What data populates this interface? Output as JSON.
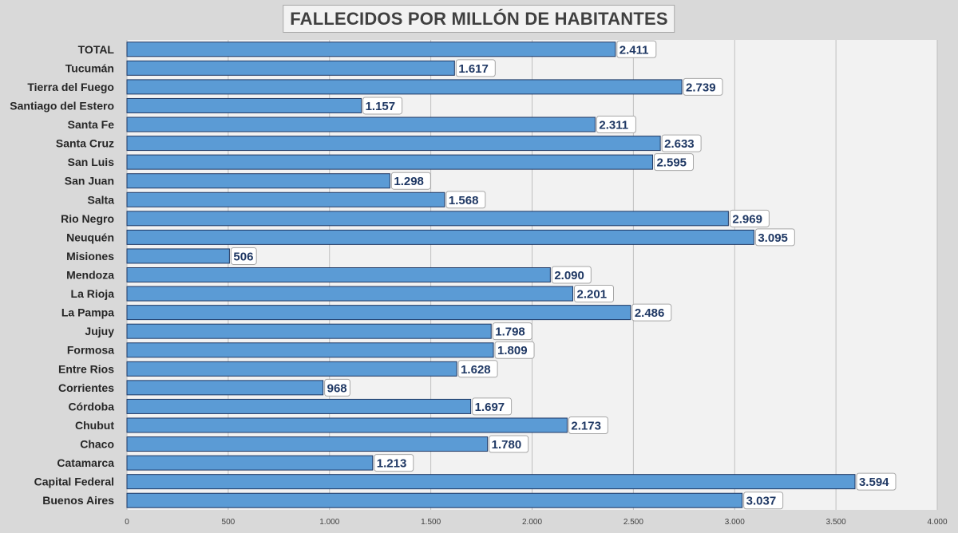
{
  "chart_data": {
    "type": "bar",
    "orientation": "horizontal",
    "title": "FALLECIDOS POR MILLÓN DE HABITANTES",
    "categories": [
      "TOTAL",
      "Tucumán",
      "Tierra del Fuego",
      "Santiago del Estero",
      "Santa Fe",
      "Santa Cruz",
      "San Luis",
      "San Juan",
      "Salta",
      "Rio Negro",
      "Neuquén",
      "Misiones",
      "Mendoza",
      "La Rioja",
      "La Pampa",
      "Jujuy",
      "Formosa",
      "Entre Rios",
      "Corrientes",
      "Córdoba",
      "Chubut",
      "Chaco",
      "Catamarca",
      "Capital Federal",
      "Buenos Aires"
    ],
    "values": [
      2411,
      1617,
      2739,
      1157,
      2311,
      2633,
      2595,
      1298,
      1568,
      2969,
      3095,
      506,
      2090,
      2201,
      2486,
      1798,
      1809,
      1628,
      968,
      1697,
      2173,
      1780,
      1213,
      3594,
      3037
    ],
    "value_labels": [
      "2.411",
      "1.617",
      "2.739",
      "1.157",
      "2.311",
      "2.633",
      "2.595",
      "1.298",
      "1.568",
      "2.969",
      "3.095",
      "506",
      "2.090",
      "2.201",
      "2.486",
      "1.798",
      "1.809",
      "1.628",
      "968",
      "1.697",
      "2.173",
      "1.780",
      "1.213",
      "3.594",
      "3.037"
    ],
    "xlim": [
      0,
      4000
    ],
    "xticks": [
      0,
      500,
      1000,
      1500,
      2000,
      2500,
      3000,
      3500,
      4000
    ],
    "xtick_labels": [
      "0",
      "500",
      "1.000",
      "1.500",
      "2.000",
      "2.500",
      "3.000",
      "3.500",
      "4.000"
    ],
    "xlabel": "",
    "ylabel": "",
    "grid": true,
    "legend": "none",
    "colors": {
      "bar": "#5b9bd5",
      "bar_border": "#1f3864",
      "label_text": "#1f3864",
      "plot_bg": "#f2f2f2",
      "page_bg": "#d9d9d9",
      "grid": "#bfbfbf"
    }
  }
}
